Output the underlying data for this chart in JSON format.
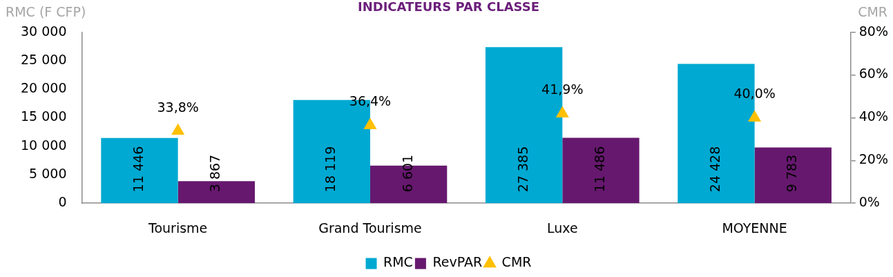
{
  "chart_data": {
    "type": "bar",
    "title": "INDICATEURS PAR CLASSE",
    "ylabel": "RMC (F CFP)",
    "y2label": "CMR",
    "categories": [
      "Tourisme",
      "Grand Tourisme",
      "Luxe",
      "MOYENNE"
    ],
    "series": [
      {
        "name": "RMC",
        "color": "#00a9d2",
        "values": [
          11446,
          18119,
          27385,
          24428
        ],
        "value_labels": [
          "11 446",
          "18 119",
          "27 385",
          "24 428"
        ]
      },
      {
        "name": "RevPAR",
        "color": "#66186e",
        "values": [
          3867,
          6601,
          11486,
          9783
        ],
        "value_labels": [
          "3 867",
          "6 601",
          "11 486",
          "9 783"
        ]
      },
      {
        "name": "CMR",
        "type": "scatter",
        "axis": "y2",
        "marker": "triangle",
        "color": "#ffc000",
        "x": [
          "Tourisme",
          "Grand Tourisme",
          "Luxe",
          "MOYENNE"
        ],
        "values": [
          33.8,
          36.4,
          41.9,
          40.0
        ],
        "value_labels": [
          "33,8%",
          "36,4%",
          "41,9%",
          "40,0%"
        ]
      }
    ],
    "ylim": [
      0,
      30000
    ],
    "yticks": [
      0,
      {
        "value": 5000,
        "label": "5 000"
      },
      {
        "value": 10000,
        "label": "10 000"
      },
      {
        "value": 15000,
        "label": "15 000"
      },
      {
        "value": 20000,
        "label": "20 000"
      },
      {
        "value": 25000,
        "label": "25 000"
      },
      {
        "value": 30000,
        "label": "30 000"
      }
    ],
    "y2lim": [
      0,
      80
    ],
    "y2ticks": [
      {
        "value": 0,
        "label": "0%"
      },
      {
        "value": 20,
        "label": "20%"
      },
      {
        "value": 40,
        "label": "40%"
      },
      {
        "value": 60,
        "label": "60%"
      },
      {
        "value": 80,
        "label": "80%"
      }
    ],
    "grid": false,
    "legend": "bottom"
  }
}
